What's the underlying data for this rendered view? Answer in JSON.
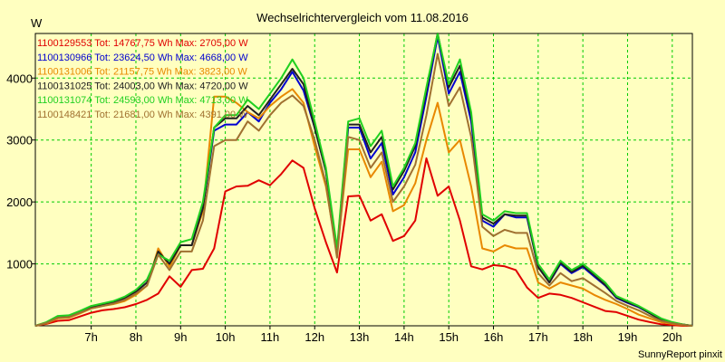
{
  "chart_data": {
    "type": "line",
    "title": "Wechselrichtervergleich vom 11.08.2016",
    "ylabel": "W",
    "footer": "SunnyReport pinxit",
    "xlim": [
      5.75,
      20.45
    ],
    "ylim": [
      0,
      4720
    ],
    "x_ticks": [
      7,
      8,
      9,
      10,
      11,
      12,
      13,
      14,
      15,
      16,
      17,
      18,
      19,
      20
    ],
    "x_tick_labels": [
      "7h",
      "8h",
      "9h",
      "10h",
      "11h",
      "12h",
      "13h",
      "14h",
      "15h",
      "16h",
      "17h",
      "18h",
      "19h",
      "20h"
    ],
    "y_ticks": [
      1000,
      2000,
      3000,
      4000
    ],
    "y_tick_labels": [
      "1000",
      "2000",
      "3000",
      "4000"
    ],
    "grid": true,
    "legend_position": "top-left",
    "x": [
      5.75,
      6.0,
      6.25,
      6.5,
      6.75,
      7.0,
      7.25,
      7.5,
      7.75,
      8.0,
      8.25,
      8.5,
      8.75,
      9.0,
      9.25,
      9.5,
      9.75,
      10.0,
      10.25,
      10.5,
      10.75,
      11.0,
      11.25,
      11.5,
      11.75,
      12.0,
      12.25,
      12.5,
      12.75,
      13.0,
      13.25,
      13.5,
      13.75,
      14.0,
      14.25,
      14.5,
      14.75,
      15.0,
      15.25,
      15.5,
      15.75,
      16.0,
      16.25,
      16.5,
      16.75,
      17.0,
      17.25,
      17.5,
      17.75,
      18.0,
      18.25,
      18.5,
      18.75,
      19.0,
      19.25,
      19.5,
      19.75,
      20.0,
      20.25,
      20.45
    ],
    "series": [
      {
        "name": "1100129553",
        "legend": "1100129553 Tot: 14767,75 Wh Max: 2705,00 W",
        "color": "#e00000",
        "values": [
          0,
          30,
          80,
          90,
          150,
          210,
          250,
          270,
          300,
          350,
          420,
          520,
          800,
          630,
          900,
          920,
          1250,
          2170,
          2250,
          2260,
          2350,
          2270,
          2450,
          2670,
          2550,
          1900,
          1350,
          860,
          2090,
          2100,
          1700,
          1800,
          1370,
          1450,
          1700,
          2705,
          2100,
          2250,
          1700,
          960,
          910,
          980,
          960,
          900,
          620,
          450,
          520,
          500,
          450,
          380,
          310,
          240,
          220,
          160,
          100,
          60,
          25,
          10,
          0,
          0
        ]
      },
      {
        "name": "1100130966",
        "legend": "1100130966 Tot: 23624,50 Wh Max: 4668,00 W",
        "color": "#0000d0",
        "values": [
          0,
          50,
          140,
          150,
          220,
          300,
          340,
          380,
          450,
          550,
          700,
          1200,
          1000,
          1300,
          1300,
          1900,
          3150,
          3250,
          3250,
          3450,
          3300,
          3600,
          3820,
          4100,
          3800,
          3200,
          2500,
          1200,
          3200,
          3200,
          2700,
          2950,
          2120,
          2400,
          2800,
          3700,
          4668,
          3750,
          4100,
          3300,
          1700,
          1600,
          1800,
          1750,
          1750,
          950,
          700,
          1000,
          850,
          950,
          800,
          650,
          450,
          370,
          300,
          200,
          100,
          50,
          20,
          0
        ]
      },
      {
        "name": "1100131006",
        "legend": "1100131006 Tot: 21157,75 Wh Max: 3823,00 W",
        "color": "#e88800",
        "values": [
          0,
          40,
          120,
          130,
          200,
          280,
          320,
          350,
          400,
          500,
          650,
          1250,
          950,
          1300,
          1300,
          1850,
          3700,
          3700,
          3600,
          3450,
          3350,
          3550,
          3700,
          3823,
          3600,
          2900,
          2250,
          1180,
          2850,
          2850,
          2400,
          2650,
          1850,
          1950,
          2300,
          3000,
          3600,
          2800,
          3000,
          2250,
          1250,
          1200,
          1300,
          1250,
          1250,
          700,
          600,
          700,
          650,
          600,
          500,
          420,
          350,
          270,
          180,
          120,
          60,
          30,
          10,
          0
        ]
      },
      {
        "name": "1100131025",
        "legend": "1100131025 Tot: 24003,00 Wh Max: 4720,00 W",
        "color": "#202020",
        "values": [
          0,
          50,
          140,
          150,
          220,
          300,
          340,
          380,
          450,
          550,
          700,
          1200,
          1000,
          1300,
          1300,
          1900,
          3200,
          3350,
          3350,
          3550,
          3400,
          3650,
          3900,
          4150,
          3900,
          3200,
          2500,
          1200,
          3250,
          3250,
          2800,
          3050,
          2200,
          2500,
          2900,
          3800,
          4720,
          3850,
          4200,
          3400,
          1750,
          1650,
          1800,
          1780,
          1780,
          950,
          700,
          1020,
          870,
          970,
          820,
          660,
          460,
          380,
          310,
          200,
          100,
          50,
          20,
          0
        ]
      },
      {
        "name": "1100131074",
        "legend": "1100131074 Tot: 24593,00 Wh Max: 4713,00 W",
        "color": "#20d020",
        "values": [
          0,
          60,
          160,
          170,
          240,
          320,
          360,
          400,
          470,
          580,
          750,
          1150,
          1050,
          1350,
          1400,
          2000,
          3200,
          3400,
          3400,
          3650,
          3500,
          3750,
          4000,
          4300,
          4000,
          3300,
          2550,
          1250,
          3300,
          3350,
          2900,
          3150,
          2250,
          2550,
          2950,
          3850,
          4713,
          3900,
          4300,
          3450,
          1800,
          1700,
          1850,
          1820,
          1820,
          1000,
          750,
          1050,
          900,
          1000,
          850,
          700,
          480,
          400,
          320,
          220,
          120,
          60,
          20,
          0
        ]
      },
      {
        "name": "1100148421",
        "legend": "1100148421 Tot: 21681,00 Wh Max: 4391,00 W",
        "color": "#a07030",
        "values": [
          0,
          45,
          130,
          140,
          210,
          280,
          320,
          360,
          420,
          520,
          650,
          1150,
          900,
          1200,
          1200,
          1700,
          2900,
          3000,
          3000,
          3300,
          3150,
          3400,
          3600,
          3720,
          3550,
          3000,
          2300,
          1100,
          3050,
          3000,
          2550,
          2800,
          2000,
          2250,
          2600,
          3400,
          4391,
          3550,
          3850,
          3050,
          1600,
          1450,
          1550,
          1500,
          1500,
          850,
          650,
          850,
          720,
          770,
          650,
          530,
          400,
          320,
          250,
          160,
          80,
          40,
          15,
          0
        ]
      }
    ]
  }
}
